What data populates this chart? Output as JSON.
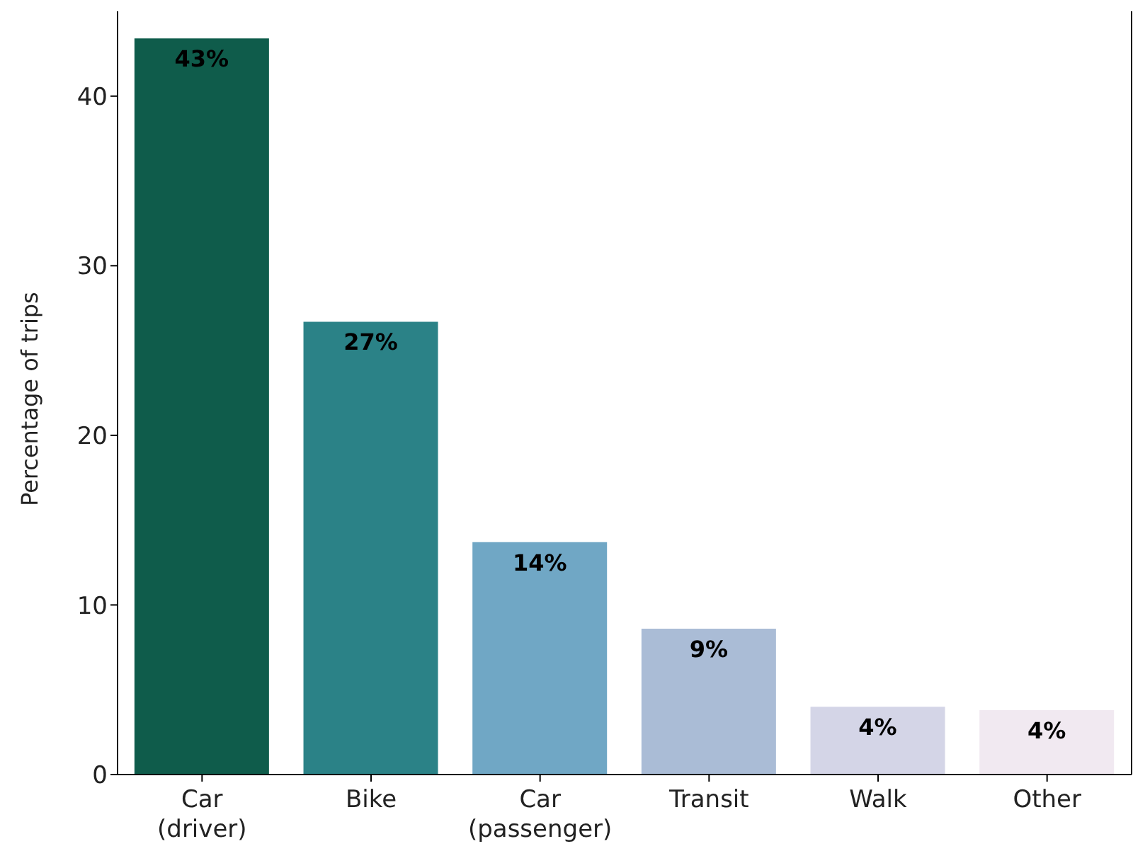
{
  "chart_data": {
    "type": "bar",
    "ylabel": "Percentage of trips",
    "categories": [
      "Car\n(driver)",
      "Bike",
      "Car\n(passenger)",
      "Transit",
      "Walk",
      "Other"
    ],
    "values": [
      43.4,
      26.7,
      13.7,
      8.6,
      4.0,
      3.8
    ],
    "value_labels": [
      "43%",
      "27%",
      "14%",
      "9%",
      "4%",
      "4%"
    ],
    "colors": [
      "#0f5c4b",
      "#2b8287",
      "#70a7c5",
      "#aabcd6",
      "#d4d5e7",
      "#f1e9f1"
    ],
    "ylim": [
      0,
      45
    ],
    "yticks": [
      0,
      10,
      20,
      30,
      40
    ],
    "grid": false,
    "legend": false
  }
}
